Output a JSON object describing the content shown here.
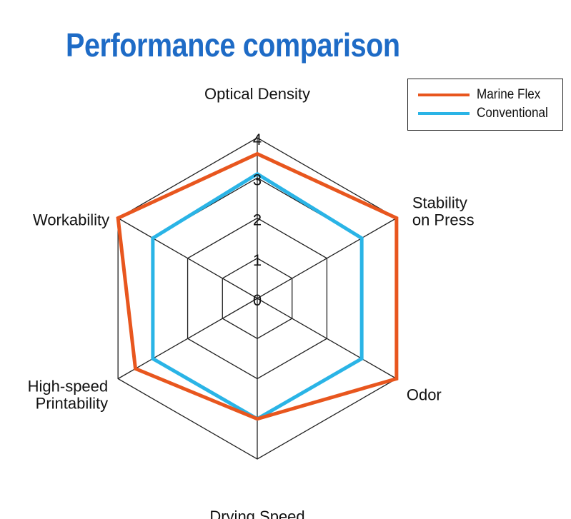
{
  "title": "Performance comparison",
  "chart_data": {
    "type": "radar",
    "title": "Performance comparison",
    "axes": [
      {
        "name": "Optical Density",
        "label_lines": [
          "Optical Density"
        ]
      },
      {
        "name": "Stability on Press",
        "label_lines": [
          "Stability",
          "on Press"
        ]
      },
      {
        "name": "Odor",
        "label_lines": [
          "Odor"
        ]
      },
      {
        "name": "Drying Speed",
        "label_lines": [
          "Drying Speed"
        ]
      },
      {
        "name": "High-speed Printability",
        "label_lines": [
          "High-speed",
          "Printability"
        ]
      },
      {
        "name": "Workability",
        "label_lines": [
          "Workability"
        ]
      }
    ],
    "range": [
      0,
      4
    ],
    "ticks": [
      "0",
      "1",
      "2",
      "3",
      "4"
    ],
    "series": [
      {
        "name": "Marine Flex",
        "color": "#e8561e",
        "values": [
          3.6,
          4.0,
          4.0,
          3.0,
          3.5,
          4.0
        ]
      },
      {
        "name": "Conventional",
        "color": "#2ab4e6",
        "values": [
          3.1,
          3.0,
          3.0,
          3.0,
          3.0,
          3.0
        ]
      }
    ],
    "legend_position": "top-right",
    "grid": true
  }
}
